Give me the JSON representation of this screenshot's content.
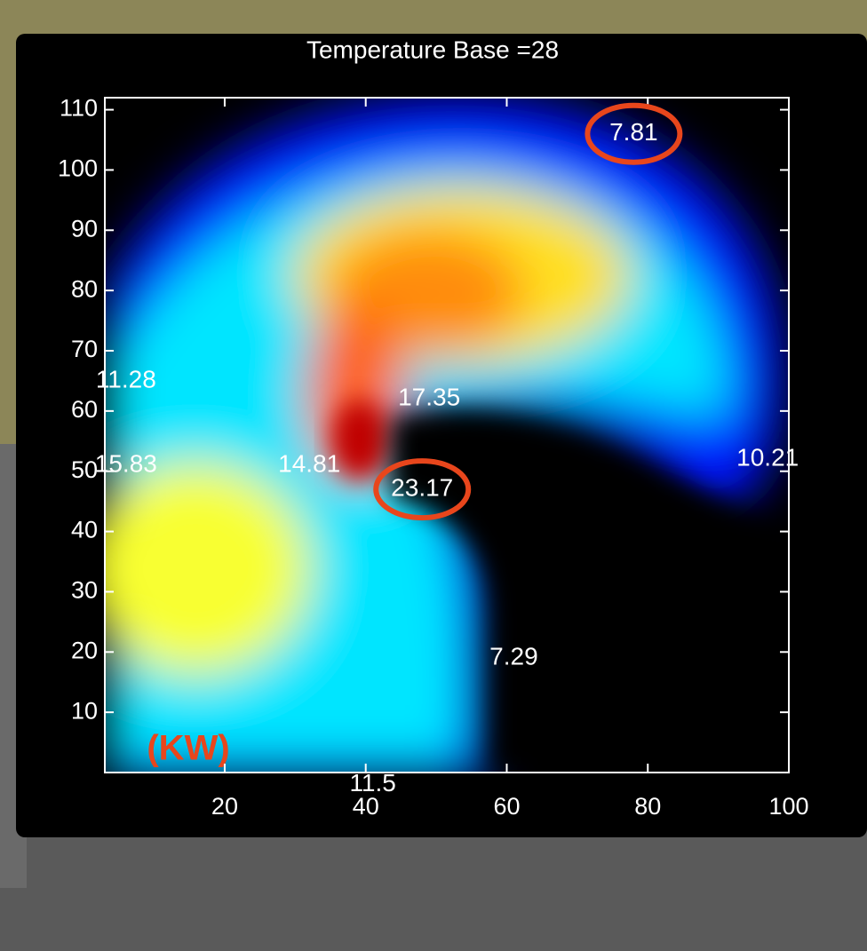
{
  "chart_data": {
    "type": "heatmap",
    "title": "Temperature Base =28",
    "unit_label": "(KW)",
    "xlim": [
      3,
      100
    ],
    "ylim": [
      0,
      112
    ],
    "xticks": [
      20,
      40,
      60,
      80,
      100
    ],
    "yticks": [
      10,
      20,
      30,
      40,
      50,
      60,
      70,
      80,
      90,
      100,
      110
    ],
    "highlight_color": "#e8461c",
    "points": [
      {
        "x": 6,
        "y": 65,
        "value": 11.28,
        "highlighted": false
      },
      {
        "x": 6,
        "y": 51,
        "value": 15.83,
        "highlighted": false
      },
      {
        "x": 32,
        "y": 51,
        "value": 14.81,
        "highlighted": false
      },
      {
        "x": 49,
        "y": 62,
        "value": 17.35,
        "highlighted": false
      },
      {
        "x": 48,
        "y": 47,
        "value": 23.17,
        "highlighted": true
      },
      {
        "x": 78,
        "y": 106,
        "value": 7.81,
        "highlighted": true
      },
      {
        "x": 97,
        "y": 52,
        "value": 10.21,
        "highlighted": false
      },
      {
        "x": 61,
        "y": 19,
        "value": 7.29,
        "highlighted": false
      },
      {
        "x": 41,
        "y": -2,
        "value": 11.5,
        "highlighted": false
      }
    ]
  }
}
